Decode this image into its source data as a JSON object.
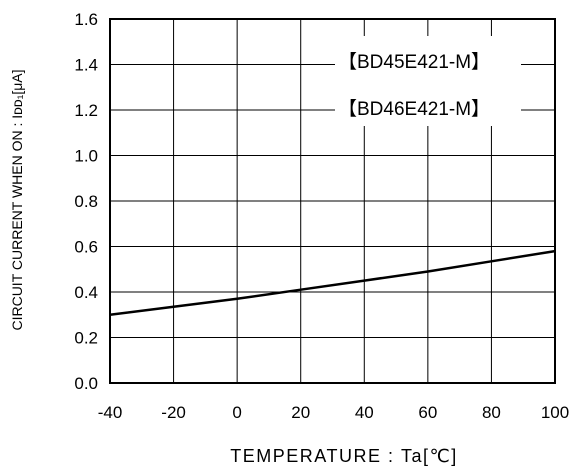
{
  "chart_data": {
    "type": "line",
    "title": "",
    "xlabel": "TEMPERATURE : Ta[℃]",
    "ylabel": "CIRCUIT CURRENT WHEN ON : Iᴅᴅ₁[μA]",
    "xlim": [
      -40,
      100
    ],
    "ylim": [
      0.0,
      1.6
    ],
    "x_ticks": [
      "-40",
      "-20",
      "0",
      "20",
      "40",
      "60",
      "80",
      "100"
    ],
    "y_ticks": [
      "0.0",
      "0.2",
      "0.4",
      "0.6",
      "0.8",
      "1.0",
      "1.2",
      "1.4",
      "1.6"
    ],
    "grid": true,
    "annotations": [
      "【BD45E421-M】",
      "【BD46E421-M】"
    ],
    "series": [
      {
        "x": [
          -40,
          -20,
          0,
          20,
          40,
          60,
          80,
          100
        ],
        "y": [
          0.3,
          0.335,
          0.37,
          0.41,
          0.45,
          0.49,
          0.535,
          0.58
        ]
      }
    ]
  }
}
